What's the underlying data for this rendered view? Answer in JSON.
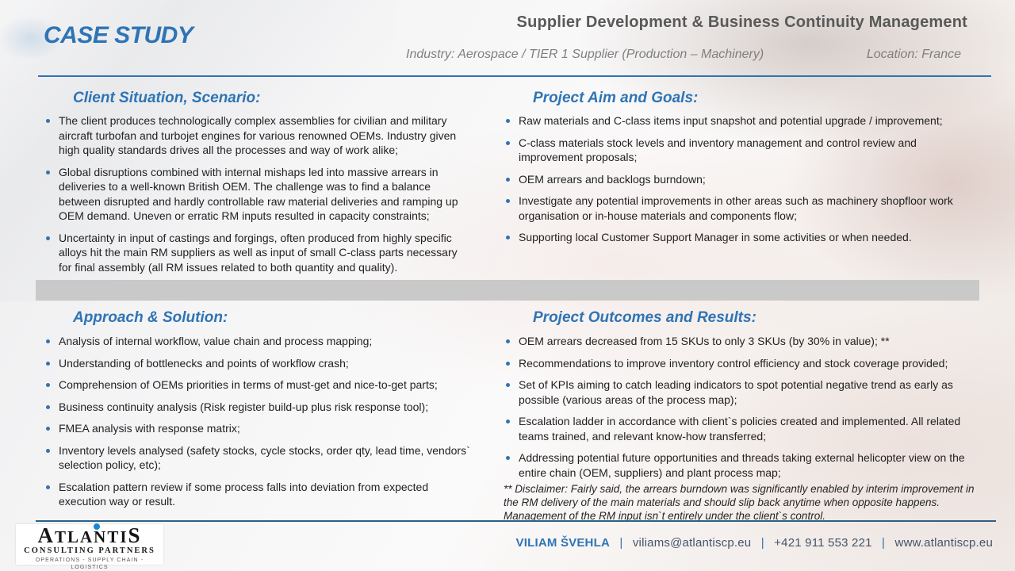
{
  "header": {
    "case_study_label": "CASE STUDY",
    "title": "Supplier Development & Business Continuity Management",
    "industry": "Industry: Aerospace / TIER 1 Supplier (Production – Machinery)",
    "location": "Location: France"
  },
  "colors": {
    "accent_blue": "#2E74B5",
    "title_gray": "#595959",
    "subtitle_gray": "#7F7F7F",
    "divider_band_gray": "#C9C9C9",
    "footer_line_blue": "#2A6186",
    "footer_text_blue_gray": "#44546A",
    "logo_dot_blue": "#1789D3"
  },
  "sections": [
    {
      "heading": "Client Situation, Scenario:",
      "bullets": [
        "The client produces technologically complex assemblies for civilian and military aircraft turbofan and turbojet engines for various renowned OEMs. Industry given high quality standards drives all the processes and way of work alike;",
        "Global disruptions combined with internal mishaps led into massive arrears in deliveries to a well-known British OEM. The challenge was to find a balance between disrupted and hardly controllable raw material deliveries and ramping up OEM demand. Uneven or erratic RM inputs resulted in capacity constraints;",
        "Uncertainty in input of castings and forgings, often produced from highly specific alloys hit the main RM suppliers as well as input of small C-class parts necessary for final assembly (all RM issues related to both quantity and quality)."
      ]
    },
    {
      "heading": "Project Aim and Goals:",
      "bullets": [
        "Raw materials and C-class items input snapshot and potential upgrade / improvement;",
        "C-class materials stock levels and inventory management and control review and improvement proposals;",
        "OEM arrears and backlogs burndown;",
        "Investigate any potential improvements in other areas such as machinery shopfloor work organisation or in-house materials and components flow;",
        "Supporting local Customer Support Manager in some activities or when needed."
      ]
    },
    {
      "heading": "Approach & Solution:",
      "bullets": [
        "Analysis of internal workflow, value chain and process mapping;",
        "Understanding of bottlenecks and points of workflow crash;",
        "Comprehension of OEMs priorities in terms of must-get and nice-to-get parts;",
        "Business continuity analysis (Risk register build-up plus risk response tool);",
        "FMEA analysis with response matrix;",
        "Inventory levels analysed (safety stocks, cycle stocks, order qty, lead time, vendors` selection policy, etc);",
        "Escalation pattern review if some process falls into deviation from expected execution way or result."
      ]
    },
    {
      "heading": "Project Outcomes and Results:",
      "bullets": [
        "OEM arrears decreased from 15 SKUs to only 3 SKUs (by 30% in value); **",
        "Recommendations to improve inventory control efficiency and stock coverage provided;",
        "Set of KPIs aiming to catch leading indicators to spot potential negative trend as early as possible (various areas of the process map);",
        "Escalation ladder in accordance with client`s policies created and implemented. All related teams trained, and relevant know-how transferred;",
        "Addressing potential future opportunities and threads taking external helicopter view on the entire chain (OEM, suppliers) and plant process map;"
      ],
      "disclaimer": "** Disclaimer: Fairly said, the arrears burndown was significantly enabled by interim improvement in the RM delivery of the main materials and should slip back anytime when opposite happens. Management of the RM input isn`t entirely under the client`s control."
    }
  ],
  "footer": {
    "logo": {
      "name_first": "A",
      "name_mid": "TLANTI",
      "name_last": "S",
      "subtitle": "CONSULTING PARTNERS",
      "tagline": "OPERATIONS - SUPPLY CHAIN - LOGISTICS"
    },
    "contact": {
      "name": "VILIAM ŠVEHLA",
      "email": "viliams@atlantiscp.eu",
      "phone": "+421 911 553 221",
      "website": "www.atlantiscp.eu",
      "separator": "|"
    }
  }
}
